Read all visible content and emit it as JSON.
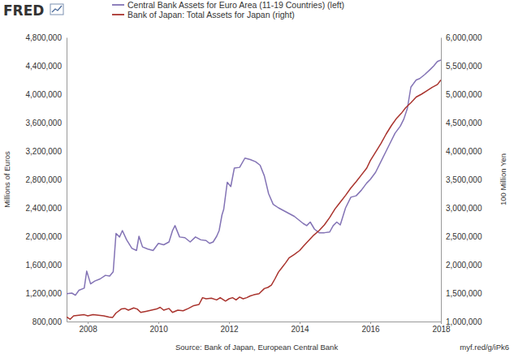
{
  "chart_data": {
    "type": "line",
    "logo": "FRED",
    "y_label": "Millions of Euros",
    "y2_label": "100 Million Yen",
    "source": "Source: Bank of Japan, European Central Bank",
    "url": "myf.red/g/iPk6",
    "legend": "top",
    "grid": false,
    "xlim": [
      2007.4,
      2018.0
    ],
    "xticks": [
      2008,
      2010,
      2012,
      2014,
      2016,
      2018
    ],
    "ylim": [
      800000,
      4800000
    ],
    "yticks": [
      {
        "value": 800000,
        "label": "800,000"
      },
      {
        "value": 1200000,
        "label": "1,200,000"
      },
      {
        "value": 1600000,
        "label": "1,600,000"
      },
      {
        "value": 2000000,
        "label": "2,000,000"
      },
      {
        "value": 2400000,
        "label": "2,400,000"
      },
      {
        "value": 2800000,
        "label": "2,800,000"
      },
      {
        "value": 3200000,
        "label": "3,200,000"
      },
      {
        "value": 3600000,
        "label": "3,600,000"
      },
      {
        "value": 4000000,
        "label": "4,000,000"
      },
      {
        "value": 4400000,
        "label": "4,400,000"
      },
      {
        "value": 4800000,
        "label": "4,800,000"
      }
    ],
    "y2lim": [
      1000000,
      6000000
    ],
    "y2ticks": [
      {
        "value": 1000000,
        "label": "1,000,000"
      },
      {
        "value": 1500000,
        "label": "1,500,000"
      },
      {
        "value": 2000000,
        "label": "2,000,000"
      },
      {
        "value": 2500000,
        "label": "2,500,000"
      },
      {
        "value": 3000000,
        "label": "3,000,000"
      },
      {
        "value": 3500000,
        "label": "3,500,000"
      },
      {
        "value": 4000000,
        "label": "4,000,000"
      },
      {
        "value": 4500000,
        "label": "4,500,000"
      },
      {
        "value": 5000000,
        "label": "5,000,000"
      },
      {
        "value": 5500000,
        "label": "5,500,000"
      },
      {
        "value": 6000000,
        "label": "6,000,000"
      }
    ],
    "series": [
      {
        "name": "Central Bank Assets for Euro Area (11-19 Countries) (left)",
        "color": "#8373b5",
        "axis": "y",
        "x": [
          2007.4,
          2007.55,
          2007.65,
          2007.75,
          2007.9,
          2007.97,
          2008.08,
          2008.2,
          2008.35,
          2008.5,
          2008.62,
          2008.72,
          2008.8,
          2008.9,
          2008.98,
          2009.1,
          2009.25,
          2009.38,
          2009.45,
          2009.55,
          2009.7,
          2009.85,
          2010.0,
          2010.15,
          2010.3,
          2010.4,
          2010.47,
          2010.6,
          2010.75,
          2010.9,
          2011.05,
          2011.2,
          2011.35,
          2011.45,
          2011.55,
          2011.65,
          2011.72,
          2011.8,
          2011.85,
          2011.95,
          2012.05,
          2012.15,
          2012.3,
          2012.45,
          2012.6,
          2012.75,
          2012.88,
          2013.0,
          2013.12,
          2013.25,
          2013.4,
          2013.55,
          2013.7,
          2013.85,
          2014.0,
          2014.1,
          2014.2,
          2014.3,
          2014.42,
          2014.55,
          2014.7,
          2014.85,
          2014.95,
          2015.05,
          2015.15,
          2015.3,
          2015.45,
          2015.6,
          2015.75,
          2015.9,
          2016.0,
          2016.15,
          2016.3,
          2016.45,
          2016.55,
          2016.7,
          2016.85,
          2016.95,
          2017.05,
          2017.15,
          2017.3,
          2017.4,
          2017.55,
          2017.7,
          2017.8,
          2017.9,
          2018.0
        ],
        "values": [
          1190000,
          1200000,
          1170000,
          1240000,
          1270000,
          1510000,
          1330000,
          1370000,
          1400000,
          1450000,
          1440000,
          1500000,
          2040000,
          1990000,
          2080000,
          1950000,
          1830000,
          1800000,
          2000000,
          1850000,
          1820000,
          1800000,
          1900000,
          1880000,
          1920000,
          2080000,
          2150000,
          1990000,
          1980000,
          1920000,
          1990000,
          1950000,
          1940000,
          1900000,
          1920000,
          2000000,
          2080000,
          2300000,
          2380000,
          2760000,
          2700000,
          2960000,
          2970000,
          3100000,
          3080000,
          3050000,
          3000000,
          2850000,
          2600000,
          2450000,
          2400000,
          2360000,
          2320000,
          2280000,
          2220000,
          2180000,
          2150000,
          2200000,
          2100000,
          2050000,
          2050000,
          2060000,
          2150000,
          2200000,
          2160000,
          2400000,
          2550000,
          2570000,
          2650000,
          2750000,
          2800000,
          2900000,
          3050000,
          3200000,
          3300000,
          3450000,
          3550000,
          3650000,
          3800000,
          4100000,
          4200000,
          4220000,
          4280000,
          4350000,
          4400000,
          4460000,
          4480000
        ]
      },
      {
        "name": "Bank of Japan: Total Assets for Japan (right)",
        "color": "#a9332d",
        "axis": "y2",
        "x": [
          2007.4,
          2007.5,
          2007.6,
          2007.75,
          2007.9,
          2008.0,
          2008.15,
          2008.3,
          2008.45,
          2008.6,
          2008.7,
          2008.8,
          2008.95,
          2009.05,
          2009.15,
          2009.3,
          2009.4,
          2009.5,
          2009.65,
          2009.8,
          2009.95,
          2010.05,
          2010.15,
          2010.3,
          2010.4,
          2010.55,
          2010.7,
          2010.85,
          2011.0,
          2011.15,
          2011.25,
          2011.35,
          2011.5,
          2011.65,
          2011.75,
          2011.9,
          2012.0,
          2012.1,
          2012.2,
          2012.3,
          2012.4,
          2012.5,
          2012.6,
          2012.7,
          2012.85,
          2013.0,
          2013.1,
          2013.2,
          2013.3,
          2013.4,
          2013.5,
          2013.6,
          2013.7,
          2013.85,
          2014.0,
          2014.1,
          2014.25,
          2014.4,
          2014.55,
          2014.7,
          2014.85,
          2015.0,
          2015.15,
          2015.3,
          2015.45,
          2015.6,
          2015.75,
          2015.9,
          2016.0,
          2016.15,
          2016.3,
          2016.45,
          2016.6,
          2016.75,
          2016.9,
          2017.0,
          2017.15,
          2017.3,
          2017.45,
          2017.6,
          2017.75,
          2017.9,
          2018.0
        ],
        "values": [
          1080000,
          1040000,
          1100000,
          1110000,
          1120000,
          1100000,
          1120000,
          1110000,
          1100000,
          1080000,
          1070000,
          1150000,
          1220000,
          1230000,
          1200000,
          1240000,
          1220000,
          1160000,
          1180000,
          1200000,
          1220000,
          1250000,
          1200000,
          1230000,
          1160000,
          1200000,
          1190000,
          1230000,
          1280000,
          1300000,
          1420000,
          1400000,
          1410000,
          1380000,
          1420000,
          1360000,
          1400000,
          1420000,
          1380000,
          1430000,
          1400000,
          1420000,
          1450000,
          1470000,
          1490000,
          1580000,
          1600000,
          1640000,
          1750000,
          1870000,
          1950000,
          2030000,
          2120000,
          2180000,
          2250000,
          2320000,
          2420000,
          2520000,
          2600000,
          2700000,
          2830000,
          2980000,
          3100000,
          3220000,
          3350000,
          3460000,
          3580000,
          3700000,
          3830000,
          3980000,
          4130000,
          4300000,
          4450000,
          4580000,
          4680000,
          4760000,
          4850000,
          4950000,
          5000000,
          5060000,
          5120000,
          5170000,
          5250000
        ]
      }
    ]
  }
}
